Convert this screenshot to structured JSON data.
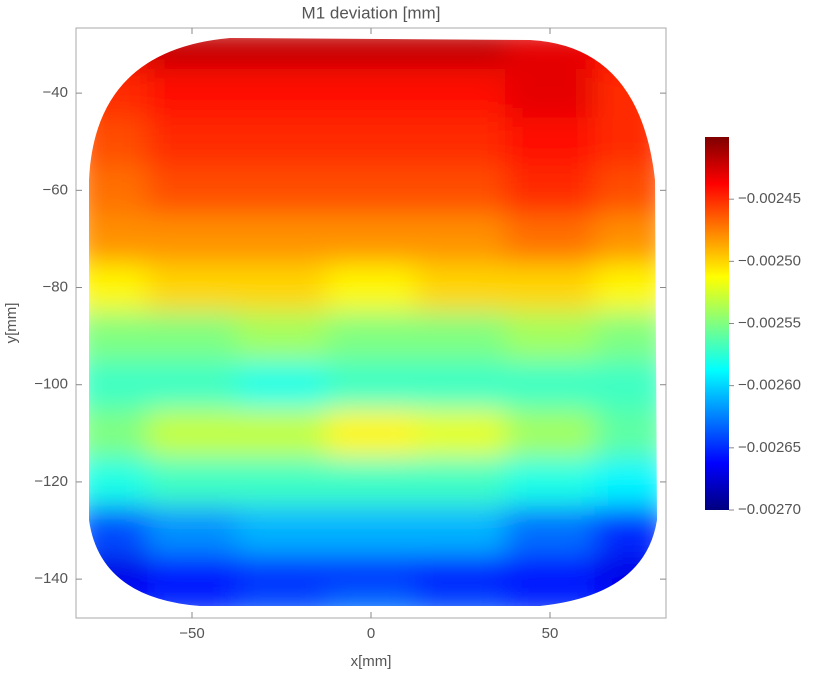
{
  "chart_data": {
    "type": "heatmap",
    "title": "M1 deviation [mm]",
    "x_label": "x[mm]",
    "y_label": "y[mm]",
    "xlim": [
      -82.4,
      82.4
    ],
    "ylim": [
      -148,
      -26.6
    ],
    "xticks": [
      {
        "value": -50,
        "label": "−50"
      },
      0,
      50
    ],
    "yticks": [
      {
        "value": -40,
        "label": "−40"
      },
      {
        "value": -60,
        "label": "−60"
      },
      {
        "value": -80,
        "label": "−80"
      },
      {
        "value": -100,
        "label": "−100"
      },
      {
        "value": -120,
        "label": "−120"
      },
      {
        "value": -140,
        "label": "−140"
      }
    ],
    "x": [
      -75,
      -50,
      -25,
      0,
      25,
      50,
      75
    ],
    "y": [
      -30,
      -40,
      -50,
      -60,
      -70,
      -80,
      -90,
      -100,
      -110,
      -120,
      -130,
      -140,
      -145
    ],
    "z": [
      [
        -0.00243,
        -0.00242,
        -0.00242,
        -0.00242,
        -0.00242,
        -0.00243,
        -0.00244
      ],
      [
        -0.00245,
        -0.00244,
        -0.00244,
        -0.00244,
        -0.00244,
        -0.00243,
        -0.00245
      ],
      [
        -0.00246,
        -0.00245,
        -0.00245,
        -0.00245,
        -0.00245,
        -0.00244,
        -0.00245
      ],
      [
        -0.00247,
        -0.00246,
        -0.00246,
        -0.00246,
        -0.00246,
        -0.00245,
        -0.00246
      ],
      [
        -0.00248,
        -0.00248,
        -0.00248,
        -0.00248,
        -0.00248,
        -0.00247,
        -0.00248
      ],
      [
        -0.00251,
        -0.0025,
        -0.0025,
        -0.00251,
        -0.0025,
        -0.0025,
        -0.00251
      ],
      [
        -0.00255,
        -0.00255,
        -0.00254,
        -0.00255,
        -0.00255,
        -0.00254,
        -0.00255
      ],
      [
        -0.00257,
        -0.00257,
        -0.00258,
        -0.00257,
        -0.00257,
        -0.00257,
        -0.00257
      ],
      [
        -0.00255,
        -0.00253,
        -0.00253,
        -0.00251,
        -0.00252,
        -0.00254,
        -0.00256
      ],
      [
        -0.00258,
        -0.00257,
        -0.00257,
        -0.00257,
        -0.00257,
        -0.00258,
        -0.00259
      ],
      [
        -0.00264,
        -0.00262,
        -0.00261,
        -0.00261,
        -0.00261,
        -0.00263,
        -0.00265
      ],
      [
        -0.00267,
        -0.00266,
        -0.00265,
        -0.00265,
        -0.00266,
        -0.00266,
        -0.00267
      ],
      [
        -0.00266,
        -0.00265,
        -0.00264,
        -0.00263,
        -0.00264,
        -0.00265,
        -0.00266
      ]
    ],
    "zlim": [
      -0.0027,
      -0.0024
    ],
    "zticks": [
      {
        "value": -0.00245,
        "label": "−0.00245"
      },
      {
        "value": -0.0025,
        "label": "−0.00250"
      },
      {
        "value": -0.00255,
        "label": "−0.00255"
      },
      {
        "value": -0.0026,
        "label": "−0.00260"
      },
      {
        "value": -0.00265,
        "label": "−0.00265"
      },
      {
        "value": -0.0027,
        "label": "−0.00270"
      }
    ],
    "colormap": [
      "#00007f",
      "#0000ff",
      "#0080ff",
      "#00ffff",
      "#80ff80",
      "#ffff00",
      "#ff8000",
      "#ff0000",
      "#7f0000"
    ]
  }
}
